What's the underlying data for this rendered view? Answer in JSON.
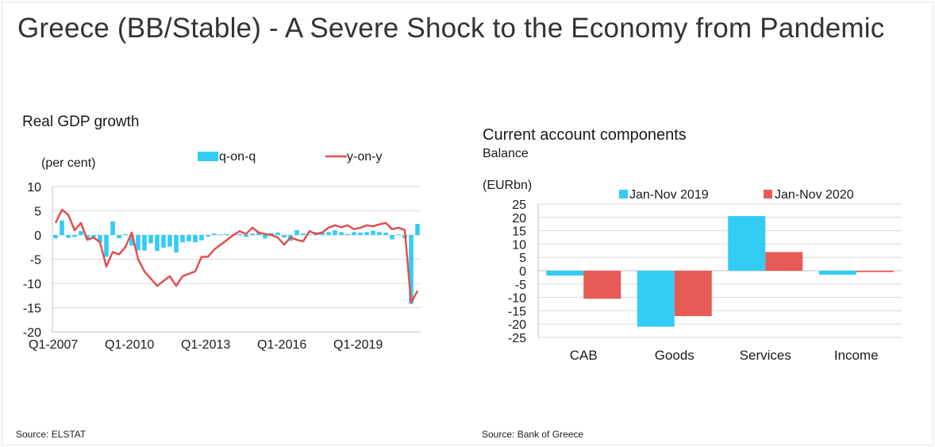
{
  "page": {
    "title": "Greece (BB/Stable) -  A Severe Shock to the Economy from Pandemic"
  },
  "sources": {
    "left": "Source: ELSTAT",
    "right": "Source: Bank of Greece"
  },
  "chart_data": [
    {
      "type": "bar+line",
      "title": "Real GDP growth",
      "ylabel": "(per cent)",
      "ylim": [
        -20,
        10
      ],
      "yticks": [
        10,
        5,
        0,
        -5,
        -10,
        -15,
        -20
      ],
      "xticks": [
        "Q1-2007",
        "Q1-2010",
        "Q1-2013",
        "Q1-2016",
        "Q1-2019"
      ],
      "xtick_index": [
        0,
        12,
        24,
        36,
        48
      ],
      "grid": true,
      "series": [
        {
          "name": "q-on-q",
          "kind": "bar",
          "color": "#33CCF5",
          "values": [
            -0.7,
            3.0,
            -0.6,
            -0.4,
            0.8,
            -0.8,
            -0.4,
            -1.5,
            -4.5,
            2.8,
            -0.7,
            0.2,
            -2.2,
            -3.2,
            -3.2,
            -1.7,
            -3.3,
            -2.6,
            -2.4,
            -3.6,
            -1.5,
            -1.3,
            -1.5,
            -1.1,
            -0.3,
            0.3,
            0.1,
            0.2,
            0.1,
            0.2,
            -0.4,
            0.3,
            0.6,
            -0.7,
            0.4,
            0.5,
            -0.5,
            -1.2,
            1.0,
            0.3,
            0.1,
            0.6,
            0.5,
            0.6,
            1.0,
            0.6,
            0.2,
            0.6,
            0.5,
            0.6,
            0.9,
            0.6,
            0.5,
            -0.9,
            0.1,
            -0.6,
            -14.2,
            2.3
          ]
        },
        {
          "name": "y-on-y",
          "kind": "line",
          "color": "#E0504F",
          "values": [
            2.5,
            5.2,
            4.2,
            1.0,
            2.5,
            -1.0,
            -0.5,
            -1.5,
            -6.5,
            -3.5,
            -4.0,
            -2.5,
            0.5,
            -5.0,
            -7.5,
            -9.0,
            -10.5,
            -9.5,
            -8.5,
            -10.5,
            -8.5,
            -8.0,
            -7.5,
            -4.5,
            -4.5,
            -3.0,
            -2.0,
            -1.0,
            0.0,
            0.8,
            0.2,
            1.5,
            0.5,
            0.2,
            0.0,
            -0.5,
            -2.0,
            -0.5,
            -1.0,
            -1.3,
            0.8,
            0.2,
            0.5,
            1.5,
            2.0,
            1.6,
            2.0,
            1.2,
            1.5,
            2.0,
            1.8,
            2.2,
            2.5,
            1.2,
            1.5,
            1.0,
            -14.0,
            -11.5
          ]
        }
      ]
    },
    {
      "type": "bar",
      "title": "Current account components",
      "subtitle": "Balance",
      "ylabel": "(EURbn)",
      "ylim": [
        -25,
        25
      ],
      "yticks": [
        25,
        20,
        15,
        10,
        5,
        0,
        -5,
        -10,
        -15,
        -20,
        -25
      ],
      "categories": [
        "CAB",
        "Goods",
        "Services",
        "Income"
      ],
      "grid": true,
      "series": [
        {
          "name": "Jan-Nov 2019",
          "color": "#33CCF5",
          "values": [
            -1.8,
            -21.0,
            20.5,
            -1.5
          ]
        },
        {
          "name": "Jan-Nov 2020",
          "color": "#E85A55",
          "values": [
            -10.5,
            -17.0,
            7.0,
            -0.5
          ]
        }
      ]
    }
  ]
}
